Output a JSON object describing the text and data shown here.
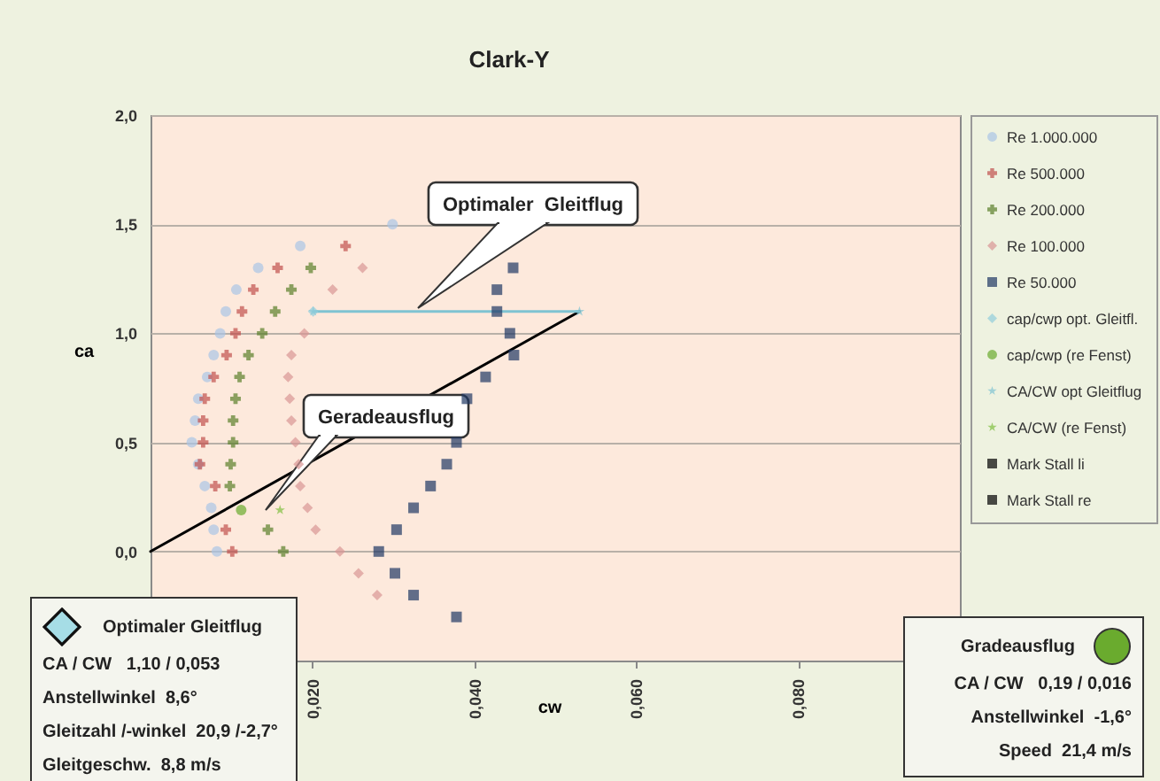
{
  "chart_data": {
    "type": "scatter",
    "title": "Clark-Y",
    "xlabel": "cw",
    "ylabel": "ca",
    "xlim": [
      0,
      0.1
    ],
    "ylim": [
      -0.5,
      2.0
    ],
    "xticks": [
      {
        "value": 0.02,
        "label": "0,020"
      },
      {
        "value": 0.04,
        "label": "0,040"
      },
      {
        "value": 0.06,
        "label": "0,060"
      },
      {
        "value": 0.08,
        "label": "0,080"
      }
    ],
    "yticks": [
      {
        "value": 0,
        "label": "0,0"
      },
      {
        "value": 0.5,
        "label": "0,5"
      },
      {
        "value": 1.0,
        "label": "1,0"
      },
      {
        "value": 1.5,
        "label": "1,5"
      },
      {
        "value": 2.0,
        "label": "2,0"
      }
    ],
    "grid": "y",
    "legend": "right",
    "series": [
      {
        "name": "Re 1.000.000",
        "color": "#a9c4e6",
        "marker": "circle",
        "x": [
          0.0299,
          0.0185,
          0.0133,
          0.0106,
          0.0093,
          0.0086,
          0.0078,
          0.007,
          0.0059,
          0.0055,
          0.0051,
          0.0059,
          0.0067,
          0.0075,
          0.0078,
          0.0082
        ],
        "values": [
          1.5,
          1.4,
          1.3,
          1.2,
          1.1,
          1.0,
          0.9,
          0.8,
          0.7,
          0.6,
          0.5,
          0.4,
          0.3,
          0.2,
          0.1,
          0.0
        ]
      },
      {
        "name": "Re 500.000",
        "color": "#c0504d",
        "marker": "cross",
        "x": [
          0.0241,
          0.0157,
          0.0127,
          0.0113,
          0.0105,
          0.0094,
          0.0078,
          0.0067,
          0.0065,
          0.0065,
          0.0061,
          0.008,
          0.0093,
          0.0101
        ],
        "values": [
          1.4,
          1.3,
          1.2,
          1.1,
          1.0,
          0.9,
          0.8,
          0.7,
          0.6,
          0.5,
          0.4,
          0.3,
          0.1,
          0.0
        ]
      },
      {
        "name": "Re 200.000",
        "color": "#5a7f2a",
        "marker": "cross",
        "x": [
          0.0198,
          0.0174,
          0.0154,
          0.0138,
          0.0121,
          0.011,
          0.0105,
          0.0102,
          0.0102,
          0.0099,
          0.0098,
          0.0145,
          0.0164
        ],
        "values": [
          1.3,
          1.2,
          1.1,
          1.0,
          0.9,
          0.8,
          0.7,
          0.6,
          0.5,
          0.4,
          0.3,
          0.1,
          0.0
        ]
      },
      {
        "name": "Re 100.000",
        "color": "#d99594",
        "marker": "diamond",
        "x": [
          0.0262,
          0.0225,
          0.019,
          0.0174,
          0.017,
          0.0172,
          0.0174,
          0.0179,
          0.0183,
          0.0185,
          0.0194,
          0.0204,
          0.0234,
          0.0257,
          0.028
        ],
        "values": [
          1.3,
          1.2,
          1.0,
          0.9,
          0.8,
          0.7,
          0.6,
          0.5,
          0.4,
          0.3,
          0.2,
          0.1,
          0.0,
          -0.1,
          -0.2
        ]
      },
      {
        "name": "Re 50.000",
        "color": "#1f3864",
        "marker": "square",
        "x": [
          0.0448,
          0.0428,
          0.0428,
          0.0444,
          0.0449,
          0.0414,
          0.0391,
          0.0378,
          0.0366,
          0.0346,
          0.0325,
          0.0304,
          0.0282,
          0.0302,
          0.0325,
          0.0378
        ],
        "values": [
          1.3,
          1.2,
          1.1,
          1.0,
          0.9,
          0.8,
          0.7,
          0.5,
          0.4,
          0.3,
          0.2,
          0.1,
          0.0,
          -0.1,
          -0.2,
          -0.3
        ]
      },
      {
        "type": "line",
        "color": "#000000",
        "x": [
          0,
          0.053
        ],
        "values": [
          0,
          1.1
        ]
      },
      {
        "name": "cap/cwp opt. Gleitfl.",
        "color": "#92cddc",
        "marker": "diamond",
        "x": [
          0.0201
        ],
        "values": [
          1.1
        ]
      },
      {
        "name": "cap/cwp (re Fenst)",
        "color": "#6aab2e",
        "marker": "circle",
        "x": [
          0.0112
        ],
        "values": [
          0.19
        ]
      },
      {
        "name": "CA/CW opt Gleitflug",
        "type": "line",
        "color": "#7fc3d2",
        "marker": "star",
        "x": [
          0.0201,
          0.053
        ],
        "values": [
          1.1,
          1.1
        ]
      },
      {
        "name": "CA/CW (re Fenst)",
        "color": "#7fbf3f",
        "marker": "star",
        "x": [
          0.016
        ],
        "values": [
          0.19
        ]
      },
      {
        "name": "Mark Stall li",
        "color": "#000000",
        "marker": "square"
      },
      {
        "name": "Mark Stall re",
        "color": "#000000",
        "marker": "square"
      }
    ],
    "annotations": [
      "Optimaler  Gleitflug",
      "Geradeausflug",
      "Optimaler Gleitflug\nCA / CW   1,10 / 0,053\nAnstellwinkel  8,6°\nGleitzahl /-winkel  20,9 /-2,7°\nGleitgeschw.  8,8 m/s",
      "Gradeausflug\nCA / CW   0,19 / 0,016\nAnstellwinkel  -1,6°\nSpeed  21,4 m/s"
    ]
  }
}
